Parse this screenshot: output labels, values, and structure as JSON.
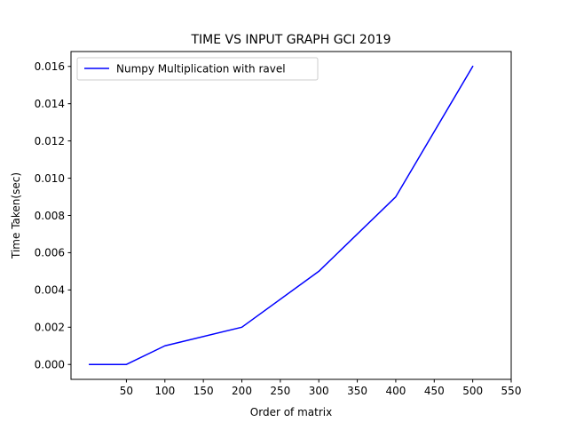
{
  "chart_data": {
    "type": "line",
    "title": "TIME VS INPUT GRAPH GCI 2019",
    "xlabel": "Order of matrix",
    "ylabel": "Time Taken(sec)",
    "xlim": [
      -22,
      550
    ],
    "ylim": [
      -0.0008,
      0.0168
    ],
    "xticks": [
      50,
      100,
      150,
      200,
      250,
      300,
      350,
      400,
      450,
      500,
      550
    ],
    "xtick_labels": [
      "50",
      "100",
      "150",
      "200",
      "250",
      "300",
      "350",
      "400",
      "450",
      "500",
      "550"
    ],
    "yticks": [
      0,
      0.002,
      0.004,
      0.006,
      0.008,
      0.01,
      0.012,
      0.014,
      0.016
    ],
    "ytick_labels": [
      "0.000",
      "0.002",
      "0.004",
      "0.006",
      "0.008",
      "0.010",
      "0.012",
      "0.014",
      "0.016"
    ],
    "grid": false,
    "legend_position": "top-left",
    "series": [
      {
        "name": "Numpy Multiplication with ravel",
        "color": "#0000ff",
        "x": [
          2,
          50,
          100,
          200,
          300,
          400,
          500
        ],
        "y": [
          0,
          0,
          0.001,
          0.002,
          0.005,
          0.009,
          0.016
        ]
      }
    ]
  }
}
